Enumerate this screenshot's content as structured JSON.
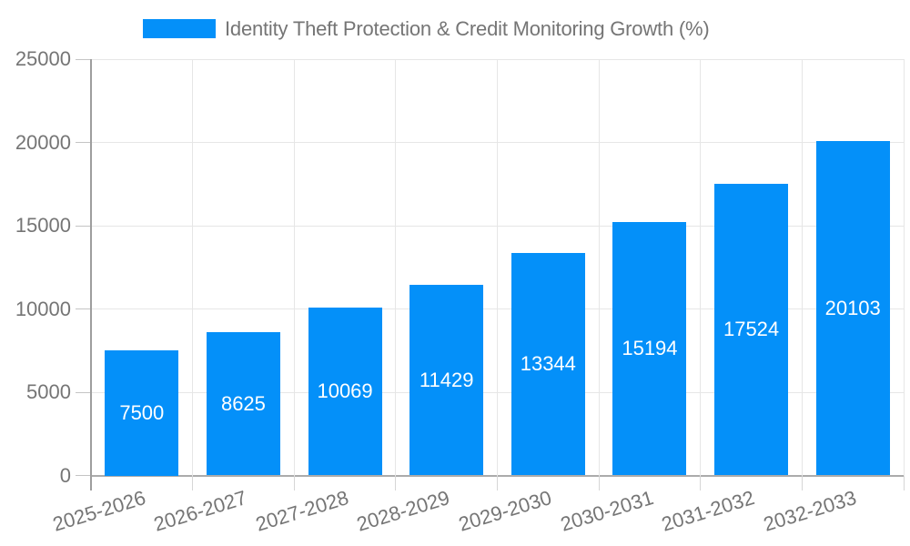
{
  "colors": {
    "bar": "#0490f9",
    "grid": "#e6e6e6",
    "axis": "#9e9e9e",
    "baseline": "#ababab",
    "tick": "#c4c4c4",
    "label_text": "#757575",
    "value_text": "#ffffff",
    "background": "#ffffff"
  },
  "legend": {
    "position": "top",
    "series_label": "Identity Theft Protection & Credit Monitoring Growth (%)"
  },
  "chart_data": {
    "type": "bar",
    "title": "Identity Theft Protection & Credit Monitoring Growth (%)",
    "categories": [
      "2025-2026",
      "2026-2027",
      "2027-2028",
      "2028-2029",
      "2029-2030",
      "2030-2031",
      "2031-2032",
      "2032-2033"
    ],
    "values": [
      7500,
      8625,
      10069,
      11429,
      13344,
      15194,
      17524,
      20103
    ],
    "xlabel": "",
    "ylabel": "",
    "ylim": [
      0,
      25000
    ],
    "yticks": [
      0,
      5000,
      10000,
      15000,
      20000,
      25000
    ],
    "grid": true,
    "value_labels": "inside-center",
    "x_label_rotation_deg": -17,
    "legend_position": "top"
  }
}
